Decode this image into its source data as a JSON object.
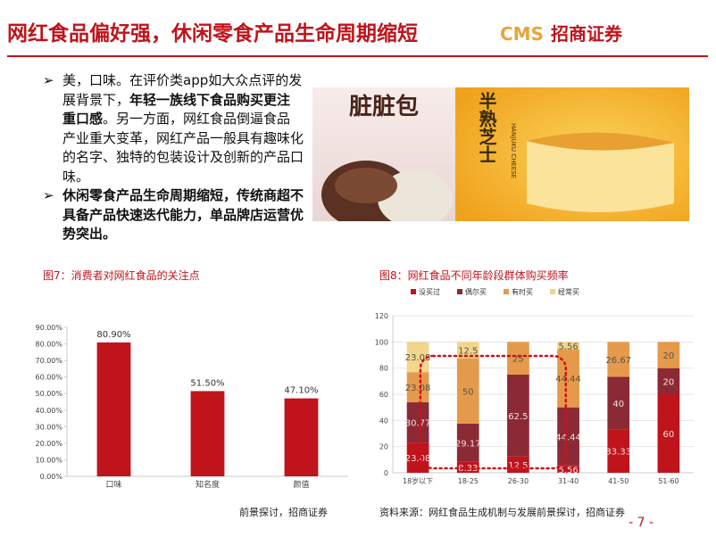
{
  "header": {
    "title": "网红食品偏好强，休闲零食产品生命周期缩短",
    "logo_en": "CMS",
    "logo_cn": "招商证券"
  },
  "bullets": [
    [
      {
        "text": "美，口味。在评价类app如大众点评的发展背景下，",
        "bold": false
      },
      {
        "text": "年轻一族线下食品购买更注重口感",
        "bold": true
      },
      {
        "text": "。另一方面，网红食品倒逼食品产业重大变革，网红产品一般具有趣味化的名字、独特的包装设计及创新的产品口味。",
        "bold": false
      }
    ],
    [
      {
        "text": "休闲零食产品生命周期缩短，传统商超不具备产品快速迭代能力，单品牌店运营优势突出。",
        "bold": true
      }
    ]
  ],
  "image": {
    "left_text": "脏脏包",
    "right_text": "半熟芝士",
    "right_sub": "HANJUKU CHEESE"
  },
  "chart_data": [
    {
      "type": "bar",
      "title": "图7：消费者对网红食品的关注点",
      "categories": [
        "口味",
        "知名度",
        "颜值"
      ],
      "values": [
        80.9,
        51.5,
        47.1
      ],
      "value_labels": [
        "80.90%",
        "51.50%",
        "47.10%"
      ],
      "color": "#c0141c",
      "ylim": [
        0,
        90
      ],
      "yticks": [
        {
          "value": 0,
          "label": "0.00%"
        },
        {
          "value": 10,
          "label": "10.00%"
        },
        {
          "value": 20,
          "label": "20.00%"
        },
        {
          "value": 30,
          "label": "30.00%"
        },
        {
          "value": 40,
          "label": "40.00%"
        },
        {
          "value": 50,
          "label": "50.00%"
        },
        {
          "value": 60,
          "label": "60.00%"
        },
        {
          "value": 70,
          "label": "70.00%"
        },
        {
          "value": 80,
          "label": "80.00%"
        },
        {
          "value": 90,
          "label": "90.00%"
        }
      ],
      "grid": false,
      "source": "前景探讨，招商证券"
    },
    {
      "type": "stacked_bar",
      "title": "图8：网红食品不同年龄段群体购买频率",
      "categories": [
        "18岁以下",
        "18-25",
        "26-30",
        "31-40",
        "41-50",
        "51-60"
      ],
      "series": [
        {
          "name": "没买过",
          "color": "#c0141c",
          "values": [
            23.08,
            8.33,
            12.5,
            5.56,
            33.33,
            60
          ]
        },
        {
          "name": "偶尔买",
          "color": "#8b2a35",
          "values": [
            30.77,
            29.17,
            62.5,
            44.44,
            40,
            20
          ]
        },
        {
          "name": "有时买",
          "color": "#e59a4b",
          "values": [
            23.08,
            50,
            25,
            44.44,
            26.67,
            20
          ]
        },
        {
          "name": "经常买",
          "color": "#f3d58b",
          "values": [
            23.08,
            12.5,
            0,
            5.56,
            0,
            0
          ]
        }
      ],
      "ylim": [
        0,
        120
      ],
      "yticks": [
        0,
        20,
        40,
        60,
        80,
        100,
        120
      ],
      "grid": true,
      "source": "资料来源：网红食品生成机制与发展前景探讨，招商证券"
    }
  ],
  "page_number": "- 7 -"
}
